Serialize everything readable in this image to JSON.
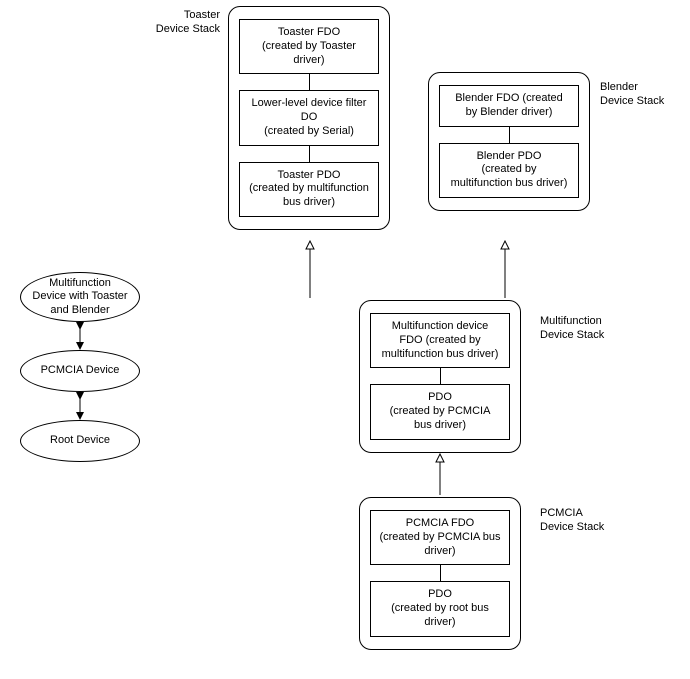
{
  "labels": {
    "toaster_stack": "Toaster\nDevice Stack",
    "blender_stack": "Blender\nDevice Stack",
    "multifunction_stack": "Multifunction\nDevice Stack",
    "pcmcia_stack": "PCMCIA\nDevice Stack"
  },
  "stacks": {
    "toaster": {
      "boxes": [
        "Toaster FDO\n(created by Toaster\ndriver)",
        "Lower-level device filter\nDO\n(created by Serial)",
        "Toaster PDO\n(created by multifunction\nbus driver)"
      ]
    },
    "blender": {
      "boxes": [
        "Blender FDO (created\nby Blender driver)",
        "Blender PDO\n(created by\nmultifunction bus driver)"
      ]
    },
    "multifunction": {
      "boxes": [
        "Multifunction device\nFDO (created by\nmultifunction bus driver)",
        "PDO\n(created by PCMCIA\nbus driver)"
      ]
    },
    "pcmcia": {
      "boxes": [
        "PCMCIA FDO\n(created by PCMCIA bus\ndriver)",
        "PDO\n(created by root bus\ndriver)"
      ]
    }
  },
  "ellipses": {
    "top": "Multifunction\nDevice with Toaster\nand Blender",
    "mid": "PCMCIA Device",
    "bot": "Root Device"
  },
  "style": {
    "font_size": 11,
    "border_color": "#000000",
    "background": "#ffffff",
    "stack_radius": 12
  }
}
